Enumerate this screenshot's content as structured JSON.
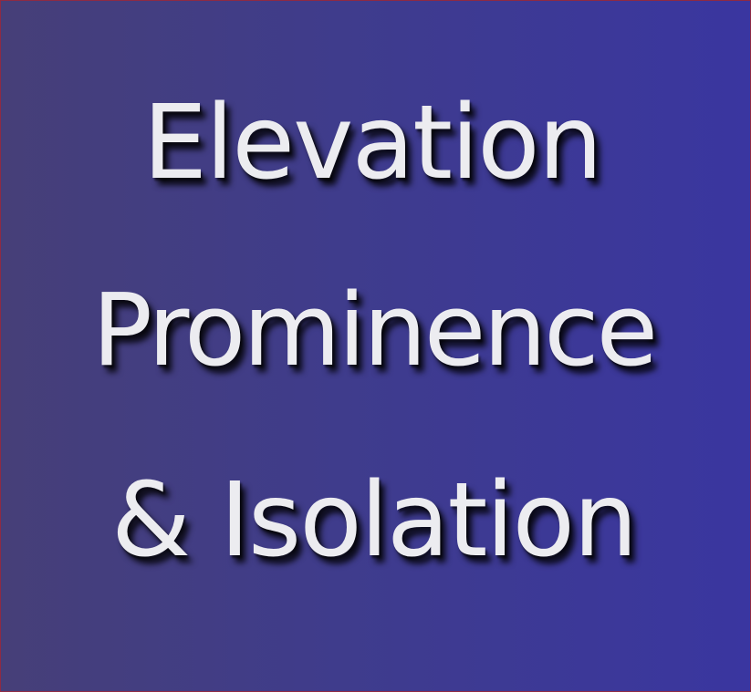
{
  "banner": {
    "lines": [
      "Elevation",
      "Prominence",
      "& Isolation"
    ]
  },
  "colors": {
    "background_left": "#463f78",
    "background_right": "#3a36a0",
    "text": "#ececf0",
    "border": "#8e2a44"
  }
}
